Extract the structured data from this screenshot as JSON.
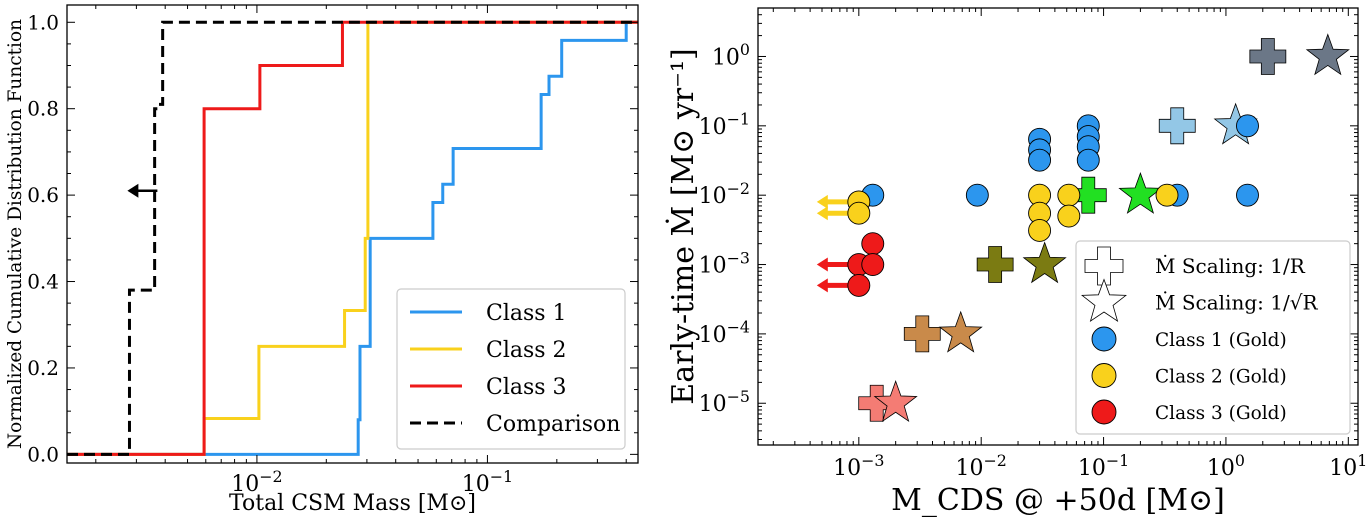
{
  "chart_data": [
    {
      "type": "line",
      "step": true,
      "xscale": "log",
      "xlim": [
        0.0015,
        0.45
      ],
      "ylim": [
        -0.02,
        1.04
      ],
      "xlabel": "Total CSM Mass [M⊙]",
      "ylabel": "Normalized Cumulative Distribution Function",
      "xticks": [
        {
          "value": 0.01,
          "label": "10⁻²"
        },
        {
          "value": 0.1,
          "label": "10⁻¹"
        }
      ],
      "yticks": [
        {
          "value": 0.0,
          "label": "0.0"
        },
        {
          "value": 0.2,
          "label": "0.2"
        },
        {
          "value": 0.4,
          "label": "0.4"
        },
        {
          "value": 0.6,
          "label": "0.6"
        },
        {
          "value": 0.8,
          "label": "0.8"
        },
        {
          "value": 1.0,
          "label": "1.0"
        }
      ],
      "legend_position": "bottom-right",
      "series": [
        {
          "name": "Class 1",
          "color": "#2c96ee",
          "dash": "solid",
          "x": [
            0.0015,
            0.0275,
            0.0275,
            0.028,
            0.028,
            0.031,
            0.031,
            0.058,
            0.058,
            0.064,
            0.064,
            0.071,
            0.071,
            0.171,
            0.171,
            0.185,
            0.185,
            0.21,
            0.21,
            0.4,
            0.4,
            0.45
          ],
          "y": [
            0.0,
            0.0,
            0.08,
            0.08,
            0.25,
            0.25,
            0.5,
            0.5,
            0.583,
            0.583,
            0.625,
            0.625,
            0.708,
            0.708,
            0.833,
            0.833,
            0.875,
            0.875,
            0.958,
            0.958,
            1.0,
            1.0
          ]
        },
        {
          "name": "Class 2",
          "color": "#f9d11c",
          "dash": "solid",
          "x": [
            0.0015,
            0.0059,
            0.0059,
            0.0102,
            0.0102,
            0.024,
            0.024,
            0.0295,
            0.0295,
            0.0303,
            0.0303,
            0.45
          ],
          "y": [
            0.0,
            0.0,
            0.083,
            0.083,
            0.25,
            0.25,
            0.333,
            0.333,
            0.5,
            0.5,
            1.0,
            1.0
          ]
        },
        {
          "name": "Class 3",
          "color": "#ee1a1a",
          "dash": "solid",
          "x": [
            0.0015,
            0.0059,
            0.0059,
            0.0103,
            0.0103,
            0.0235,
            0.0235,
            0.45
          ],
          "y": [
            0.0,
            0.0,
            0.8,
            0.8,
            0.9,
            0.9,
            1.0,
            1.0
          ]
        },
        {
          "name": "Comparison",
          "color": "#000000",
          "dash": "dashed",
          "x": [
            0.0015,
            0.0028,
            0.0028,
            0.0036,
            0.0036,
            0.0037,
            0.0037,
            0.0039,
            0.0039,
            0.45
          ],
          "y": [
            0.0,
            0.0,
            0.38,
            0.38,
            0.8,
            0.8,
            0.81,
            0.81,
            1.0,
            1.0
          ]
        }
      ],
      "annotations": [
        {
          "type": "arrow-left",
          "x": 0.0037,
          "y": 0.61,
          "color": "#000000"
        }
      ]
    },
    {
      "type": "scatter",
      "xscale": "log",
      "yscale": "log",
      "xlim": [
        0.00015,
        12
      ],
      "ylim": [
        2.5e-06,
        5
      ],
      "xlabel": "M_CDS @ +50d [M⊙]",
      "ylabel": "Early-time Ṁ [M⊙ yr⁻¹]",
      "xticks": [
        {
          "value": 0.001,
          "label": "10⁻³"
        },
        {
          "value": 0.01,
          "label": "10⁻²"
        },
        {
          "value": 0.1,
          "label": "10⁻¹"
        },
        {
          "value": 1,
          "label": "10⁰"
        },
        {
          "value": 10,
          "label": "10¹"
        }
      ],
      "yticks": [
        {
          "value": 1e-05,
          "label": "10⁻⁵"
        },
        {
          "value": 0.0001,
          "label": "10⁻⁴"
        },
        {
          "value": 0.001,
          "label": "10⁻³"
        },
        {
          "value": 0.01,
          "label": "10⁻²"
        },
        {
          "value": 0.1,
          "label": "10⁻¹"
        },
        {
          "value": 1,
          "label": "10⁰"
        }
      ],
      "legend_position": "bottom-right",
      "legend": [
        {
          "label": "Ṁ Scaling: 1/R",
          "marker": "plus",
          "color": "#ffffff"
        },
        {
          "label": "Ṁ Scaling: 1/√R",
          "marker": "star",
          "color": "#ffffff"
        },
        {
          "label": "Class 1 (Gold)",
          "marker": "circle",
          "color": "#2c96ee"
        },
        {
          "label": "Class 2 (Gold)",
          "marker": "circle",
          "color": "#f9d11c"
        },
        {
          "label": "Class 3 (Gold)",
          "marker": "circle",
          "color": "#ee1a1a"
        }
      ],
      "series": [
        {
          "name": "Class 1 (Gold)",
          "marker": "circle",
          "color": "#2c96ee",
          "points": [
            [
              0.0013,
              0.01
            ],
            [
              0.0093,
              0.01
            ],
            [
              0.03,
              0.064
            ],
            [
              0.03,
              0.045
            ],
            [
              0.03,
              0.032
            ],
            [
              0.075,
              0.1
            ],
            [
              0.075,
              0.07
            ],
            [
              0.075,
              0.05
            ],
            [
              0.075,
              0.032
            ],
            [
              0.4,
              0.01
            ],
            [
              1.5,
              0.01
            ],
            [
              1.5,
              0.1
            ]
          ]
        },
        {
          "name": "Class 2 (Gold)",
          "marker": "circle",
          "color": "#f9d11c",
          "points": [
            [
              0.001,
              0.008
            ],
            [
              0.001,
              0.0055
            ],
            [
              0.03,
              0.01
            ],
            [
              0.03,
              0.0055
            ],
            [
              0.03,
              0.0031
            ],
            [
              0.052,
              0.01
            ],
            [
              0.052,
              0.005
            ],
            [
              0.33,
              0.01
            ]
          ]
        },
        {
          "name": "Class 3 (Gold)",
          "marker": "circle",
          "color": "#ee1a1a",
          "points": [
            [
              0.001,
              0.001
            ],
            [
              0.001,
              0.0005
            ],
            [
              0.0013,
              0.002
            ],
            [
              0.0013,
              0.001
            ]
          ]
        },
        {
          "name": "Ṁ Scaling: 1/R",
          "marker": "plus",
          "points": [
            [
              0.0014,
              1e-05,
              "#f47c74"
            ],
            [
              0.0033,
              0.0001,
              "#c98a4a"
            ],
            [
              0.013,
              0.001,
              "#7b7b12"
            ],
            [
              0.075,
              0.01,
              "#22e022"
            ],
            [
              0.4,
              0.1,
              "#93c7e6"
            ],
            [
              2.2,
              1.0,
              "#6b7787"
            ]
          ]
        },
        {
          "name": "Ṁ Scaling: 1/√R",
          "marker": "star",
          "points": [
            [
              0.002,
              1e-05,
              "#f47c74"
            ],
            [
              0.0068,
              0.0001,
              "#c98a4a"
            ],
            [
              0.033,
              0.001,
              "#7b7b12"
            ],
            [
              0.2,
              0.01,
              "#22e022"
            ],
            [
              1.2,
              0.1,
              "#93c7e6"
            ],
            [
              6.8,
              1.0,
              "#6b7787"
            ]
          ]
        }
      ],
      "upper_limit_arrows": [
        {
          "x": 0.001,
          "y": 0.008,
          "color": "#f9d11c"
        },
        {
          "x": 0.001,
          "y": 0.0055,
          "color": "#f9d11c"
        },
        {
          "x": 0.001,
          "y": 0.001,
          "color": "#ee1a1a"
        },
        {
          "x": 0.001,
          "y": 0.0005,
          "color": "#ee1a1a"
        }
      ]
    }
  ]
}
